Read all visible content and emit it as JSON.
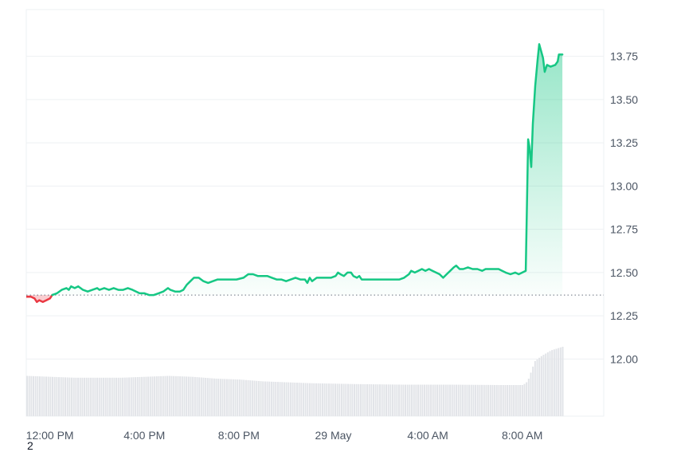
{
  "footnote": "2",
  "chart_data": {
    "type": "area",
    "title": "",
    "xlabel": "",
    "ylabel": "",
    "x_tick_labels": [
      "12:00 PM",
      "4:00 PM",
      "8:00 PM",
      "29 May",
      "4:00 AM",
      "8:00 AM"
    ],
    "x_tick_hours": [
      1,
      5,
      9,
      13,
      17,
      21
    ],
    "y_ticks": [
      12.0,
      12.25,
      12.5,
      12.75,
      13.0,
      13.25,
      13.5,
      13.75
    ],
    "ylim": [
      11.67,
      14.02
    ],
    "xlim": [
      0,
      24.45
    ],
    "baseline": 12.37,
    "colors": {
      "up": "#16c784",
      "down": "#ea3943",
      "grid": "#eef0f3",
      "baseline": "#6b7280",
      "volume": "#e2e4e8"
    },
    "series": [
      {
        "values": [
          [
            0.0,
            12.36
          ],
          [
            0.2,
            12.36
          ],
          [
            0.35,
            12.35
          ],
          [
            0.45,
            12.33
          ],
          [
            0.55,
            12.34
          ],
          [
            0.7,
            12.33
          ],
          [
            0.85,
            12.34
          ],
          [
            1.0,
            12.35
          ],
          [
            1.1,
            12.37
          ],
          [
            1.3,
            12.38
          ],
          [
            1.5,
            12.4
          ],
          [
            1.7,
            12.41
          ],
          [
            1.8,
            12.4
          ],
          [
            1.9,
            12.42
          ],
          [
            2.05,
            12.41
          ],
          [
            2.2,
            12.42
          ],
          [
            2.4,
            12.4
          ],
          [
            2.6,
            12.39
          ],
          [
            2.8,
            12.4
          ],
          [
            3.0,
            12.41
          ],
          [
            3.1,
            12.4
          ],
          [
            3.3,
            12.41
          ],
          [
            3.5,
            12.4
          ],
          [
            3.7,
            12.41
          ],
          [
            3.9,
            12.4
          ],
          [
            4.1,
            12.4
          ],
          [
            4.3,
            12.41
          ],
          [
            4.5,
            12.4
          ],
          [
            4.8,
            12.38
          ],
          [
            5.0,
            12.38
          ],
          [
            5.2,
            12.37
          ],
          [
            5.4,
            12.37
          ],
          [
            5.6,
            12.38
          ],
          [
            5.8,
            12.39
          ],
          [
            6.0,
            12.41
          ],
          [
            6.1,
            12.4
          ],
          [
            6.3,
            12.39
          ],
          [
            6.5,
            12.39
          ],
          [
            6.65,
            12.4
          ],
          [
            6.8,
            12.43
          ],
          [
            6.95,
            12.45
          ],
          [
            7.1,
            12.47
          ],
          [
            7.3,
            12.47
          ],
          [
            7.5,
            12.45
          ],
          [
            7.7,
            12.44
          ],
          [
            7.9,
            12.45
          ],
          [
            8.1,
            12.46
          ],
          [
            8.3,
            12.46
          ],
          [
            8.6,
            12.46
          ],
          [
            8.9,
            12.46
          ],
          [
            9.2,
            12.47
          ],
          [
            9.4,
            12.49
          ],
          [
            9.6,
            12.49
          ],
          [
            9.8,
            12.48
          ],
          [
            10.0,
            12.48
          ],
          [
            10.2,
            12.48
          ],
          [
            10.4,
            12.47
          ],
          [
            10.6,
            12.46
          ],
          [
            10.8,
            12.46
          ],
          [
            11.0,
            12.45
          ],
          [
            11.2,
            12.46
          ],
          [
            11.4,
            12.47
          ],
          [
            11.6,
            12.46
          ],
          [
            11.8,
            12.46
          ],
          [
            11.9,
            12.44
          ],
          [
            12.0,
            12.47
          ],
          [
            12.1,
            12.45
          ],
          [
            12.3,
            12.47
          ],
          [
            12.5,
            12.47
          ],
          [
            12.7,
            12.47
          ],
          [
            12.9,
            12.47
          ],
          [
            13.1,
            12.48
          ],
          [
            13.2,
            12.5
          ],
          [
            13.3,
            12.49
          ],
          [
            13.45,
            12.48
          ],
          [
            13.6,
            12.5
          ],
          [
            13.75,
            12.5
          ],
          [
            13.85,
            12.48
          ],
          [
            14.0,
            12.47
          ],
          [
            14.1,
            12.48
          ],
          [
            14.2,
            12.46
          ],
          [
            14.4,
            12.46
          ],
          [
            14.6,
            12.46
          ],
          [
            14.8,
            12.46
          ],
          [
            15.0,
            12.46
          ],
          [
            15.2,
            12.46
          ],
          [
            15.4,
            12.46
          ],
          [
            15.6,
            12.46
          ],
          [
            15.8,
            12.46
          ],
          [
            16.0,
            12.47
          ],
          [
            16.2,
            12.49
          ],
          [
            16.3,
            12.51
          ],
          [
            16.45,
            12.5
          ],
          [
            16.6,
            12.51
          ],
          [
            16.75,
            12.52
          ],
          [
            16.9,
            12.51
          ],
          [
            17.05,
            12.52
          ],
          [
            17.2,
            12.51
          ],
          [
            17.35,
            12.5
          ],
          [
            17.5,
            12.49
          ],
          [
            17.65,
            12.47
          ],
          [
            17.8,
            12.49
          ],
          [
            17.95,
            12.51
          ],
          [
            18.1,
            12.53
          ],
          [
            18.2,
            12.54
          ],
          [
            18.35,
            12.52
          ],
          [
            18.5,
            12.52
          ],
          [
            18.7,
            12.53
          ],
          [
            18.9,
            12.52
          ],
          [
            19.1,
            12.52
          ],
          [
            19.3,
            12.51
          ],
          [
            19.45,
            12.52
          ],
          [
            19.6,
            12.52
          ],
          [
            19.8,
            12.52
          ],
          [
            20.0,
            12.52
          ],
          [
            20.15,
            12.51
          ],
          [
            20.3,
            12.5
          ],
          [
            20.5,
            12.49
          ],
          [
            20.7,
            12.5
          ],
          [
            20.85,
            12.49
          ],
          [
            21.0,
            12.5
          ],
          [
            21.15,
            12.51
          ],
          [
            21.25,
            13.27
          ],
          [
            21.3,
            13.23
          ],
          [
            21.38,
            13.11
          ],
          [
            21.45,
            13.36
          ],
          [
            21.55,
            13.58
          ],
          [
            21.65,
            13.73
          ],
          [
            21.72,
            13.82
          ],
          [
            21.8,
            13.78
          ],
          [
            21.88,
            13.74
          ],
          [
            21.95,
            13.66
          ],
          [
            22.05,
            13.7
          ],
          [
            22.2,
            13.69
          ],
          [
            22.4,
            13.7
          ],
          [
            22.5,
            13.72
          ],
          [
            22.55,
            13.76
          ],
          [
            22.7,
            13.76
          ]
        ]
      }
    ],
    "volume": {
      "relative": [
        [
          0.0,
          0.22
        ],
        [
          1.0,
          0.215
        ],
        [
          2.0,
          0.21
        ],
        [
          4.0,
          0.21
        ],
        [
          5.0,
          0.215
        ],
        [
          6.0,
          0.22
        ],
        [
          7.0,
          0.215
        ],
        [
          8.0,
          0.205
        ],
        [
          9.0,
          0.2
        ],
        [
          10.0,
          0.19
        ],
        [
          11.0,
          0.185
        ],
        [
          12.0,
          0.18
        ],
        [
          14.0,
          0.175
        ],
        [
          16.0,
          0.172
        ],
        [
          18.0,
          0.172
        ],
        [
          20.0,
          0.17
        ],
        [
          21.0,
          0.17
        ],
        [
          21.2,
          0.19
        ],
        [
          21.5,
          0.3
        ],
        [
          21.8,
          0.33
        ],
        [
          22.2,
          0.36
        ],
        [
          22.7,
          0.38
        ]
      ]
    }
  }
}
